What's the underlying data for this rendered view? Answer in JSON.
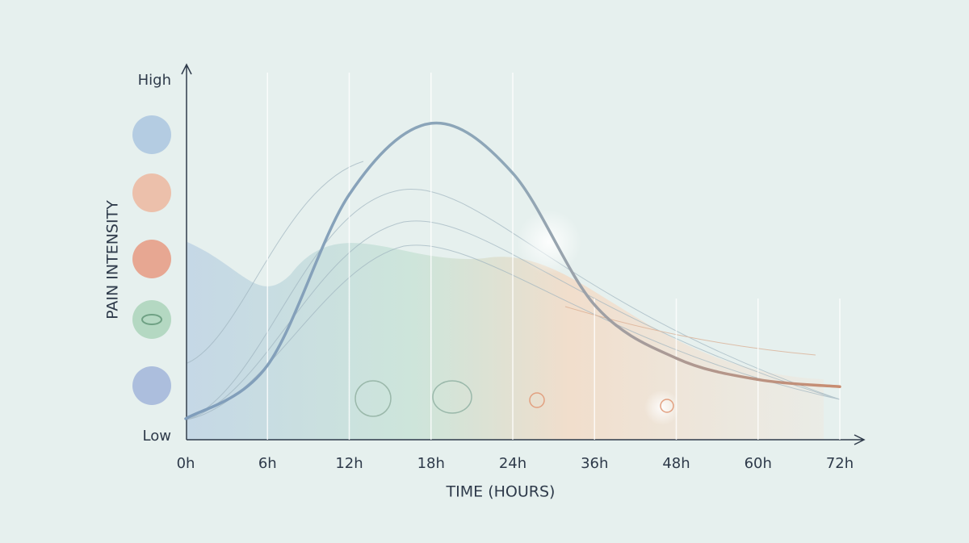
{
  "chart_data": {
    "type": "line",
    "xlabel": "TIME (HOURS)",
    "ylabel": "PAIN INTENSITY",
    "categories": [
      "0h",
      "6h",
      "12h",
      "18h",
      "24h",
      "36h",
      "48h",
      "60h",
      "72h"
    ],
    "values": [
      5,
      20,
      68,
      88,
      74,
      37,
      22,
      16,
      14
    ],
    "color": "#7f9dbb",
    "ylim": [
      0,
      100
    ],
    "yticks": [
      {
        "value": 0,
        "label": "Low"
      },
      {
        "value": 100,
        "label": "High"
      }
    ]
  }
}
